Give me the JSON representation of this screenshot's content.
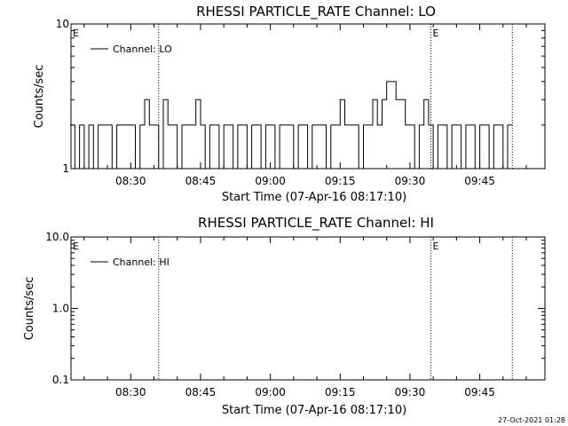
{
  "chart_data": [
    {
      "type": "line",
      "title": "RHESSI PARTICLE_RATE Channel: LO",
      "xlabel": "Start Time (07-Apr-16 08:17:10)",
      "ylabel": "Counts/sec",
      "y_scale": "log",
      "ylim": [
        1,
        10
      ],
      "yticks": [
        1,
        10
      ],
      "ytick_labels": [
        "1",
        "10"
      ],
      "xlim": [
        "08:17:10",
        "09:59:00"
      ],
      "xticks": [
        "08:30",
        "08:45",
        "09:00",
        "09:15",
        "09:30",
        "09:45"
      ],
      "grid": false,
      "legend_position": "top-left",
      "vlines": [
        {
          "x": "08:36:00",
          "flag": ""
        },
        {
          "x": "09:34:30",
          "flag": "E"
        },
        {
          "x": "09:52:00",
          "flag": ""
        }
      ],
      "corner_flag": "E",
      "series": [
        {
          "name": "Channel: LO",
          "color": "#000000",
          "x": [
            "08:17",
            "08:18",
            "08:19",
            "08:20",
            "08:21",
            "08:22",
            "08:23",
            "08:24",
            "08:25",
            "08:26",
            "08:27",
            "08:28",
            "08:29",
            "08:30",
            "08:31",
            "08:32",
            "08:33",
            "08:34",
            "08:35",
            "08:36",
            "08:37",
            "08:38",
            "08:39",
            "08:40",
            "08:41",
            "08:42",
            "08:43",
            "08:44",
            "08:45",
            "08:46",
            "08:47",
            "08:48",
            "08:49",
            "08:50",
            "08:51",
            "08:52",
            "08:53",
            "08:54",
            "08:55",
            "08:56",
            "08:57",
            "08:58",
            "08:59",
            "09:00",
            "09:01",
            "09:02",
            "09:03",
            "09:04",
            "09:05",
            "09:06",
            "09:07",
            "09:08",
            "09:09",
            "09:10",
            "09:11",
            "09:12",
            "09:13",
            "09:14",
            "09:15",
            "09:16",
            "09:17",
            "09:18",
            "09:19",
            "09:20",
            "09:21",
            "09:22",
            "09:23",
            "09:24",
            "09:25",
            "09:26",
            "09:27",
            "09:28",
            "09:29",
            "09:30",
            "09:31",
            "09:32",
            "09:33",
            "09:34",
            "09:35",
            "09:36",
            "09:37",
            "09:38",
            "09:39",
            "09:40",
            "09:41",
            "09:42",
            "09:43",
            "09:44",
            "09:45",
            "09:46",
            "09:47",
            "09:48",
            "09:49",
            "09:50",
            "09:51"
          ],
          "y": [
            2,
            1,
            2,
            1,
            2,
            1,
            2,
            2,
            2,
            1,
            2,
            2,
            2,
            2,
            1,
            2,
            3,
            2,
            2,
            1,
            3,
            2,
            2,
            1,
            2,
            2,
            2,
            3,
            2,
            1,
            2,
            2,
            1,
            2,
            2,
            1,
            2,
            2,
            1,
            2,
            2,
            1,
            2,
            2,
            1,
            2,
            2,
            2,
            1,
            2,
            2,
            1,
            2,
            2,
            2,
            1,
            2,
            2,
            3,
            2,
            2,
            2,
            1,
            2,
            2,
            3,
            2,
            3,
            4,
            4,
            3,
            3,
            2,
            2,
            1,
            2,
            3,
            2,
            1,
            2,
            2,
            1,
            2,
            2,
            1,
            2,
            2,
            1,
            2,
            2,
            1,
            2,
            2,
            1,
            2
          ]
        }
      ]
    },
    {
      "type": "line",
      "title": "RHESSI PARTICLE_RATE Channel: HI",
      "xlabel": "Start Time (07-Apr-16 08:17:10)",
      "ylabel": "Counts/sec",
      "y_scale": "log",
      "ylim": [
        0.1,
        10
      ],
      "yticks": [
        0.1,
        1,
        10
      ],
      "ytick_labels": [
        "0.1",
        "1.0",
        "10.0"
      ],
      "xlim": [
        "08:17:10",
        "09:59:00"
      ],
      "xticks": [
        "08:30",
        "08:45",
        "09:00",
        "09:15",
        "09:30",
        "09:45"
      ],
      "grid": false,
      "legend_position": "top-left",
      "vlines": [
        {
          "x": "08:36:00",
          "flag": ""
        },
        {
          "x": "09:34:30",
          "flag": "E"
        },
        {
          "x": "09:52:00",
          "flag": ""
        }
      ],
      "corner_flag": "E",
      "series": [
        {
          "name": "Channel: HI",
          "color": "#000000",
          "x": [],
          "y": []
        }
      ]
    }
  ],
  "footer": {
    "timestamp": "27-Oct-2021 01:28"
  }
}
